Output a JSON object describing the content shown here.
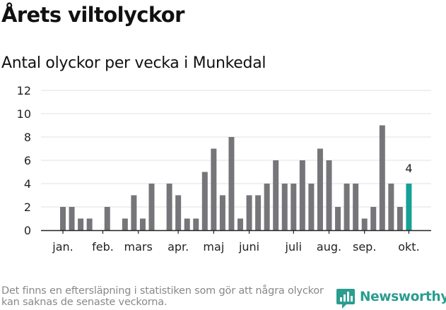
{
  "title": "Årets viltolyckor",
  "subtitle": "Antal olyckor per vecka i Munkedal",
  "footnote": "Det finns en eftersläpning i statistiken som gör att några olyckor kan saknas de senaste veckorna.",
  "brand": {
    "name": "Newsworthy",
    "icon": "newsworthy-logo-icon"
  },
  "colors": {
    "bar": "#76767a",
    "highlight": "#16a096",
    "grid": "#e0e0e0",
    "axis": "#222222",
    "text": "#222222",
    "brand": "#2a9d8f"
  },
  "chart_data": {
    "type": "bar",
    "title": "Antal olyckor per vecka i Munkedal",
    "xlabel": "",
    "ylabel": "",
    "ylim": [
      0,
      12
    ],
    "yticks": [
      0,
      2,
      4,
      6,
      8,
      10,
      12
    ],
    "grid": true,
    "weeks": [
      1,
      2,
      3,
      4,
      5,
      6,
      7,
      8,
      9,
      10,
      11,
      12,
      13,
      14,
      15,
      16,
      17,
      18,
      19,
      20,
      21,
      22,
      23,
      24,
      25,
      26,
      27,
      28,
      29,
      30,
      31,
      32,
      33,
      34,
      35,
      36,
      37,
      38,
      39,
      40
    ],
    "values": [
      2,
      2,
      1,
      1,
      0,
      2,
      0,
      1,
      3,
      1,
      4,
      0,
      4,
      3,
      1,
      1,
      5,
      7,
      3,
      8,
      1,
      3,
      3,
      4,
      6,
      4,
      4,
      6,
      4,
      7,
      6,
      2,
      4,
      4,
      1,
      2,
      9,
      4,
      2,
      4
    ],
    "month_labels": [
      {
        "label": "jan.",
        "week": 1
      },
      {
        "label": "feb.",
        "week": 5.5
      },
      {
        "label": "mars",
        "week": 9.5
      },
      {
        "label": "apr.",
        "week": 14
      },
      {
        "label": "maj",
        "week": 18
      },
      {
        "label": "juni",
        "week": 22
      },
      {
        "label": "juli",
        "week": 27
      },
      {
        "label": "aug.",
        "week": 31
      },
      {
        "label": "sep.",
        "week": 35
      },
      {
        "label": "okt.",
        "week": 40
      }
    ],
    "highlight": {
      "week": 40,
      "value": 4,
      "label": "4"
    }
  }
}
